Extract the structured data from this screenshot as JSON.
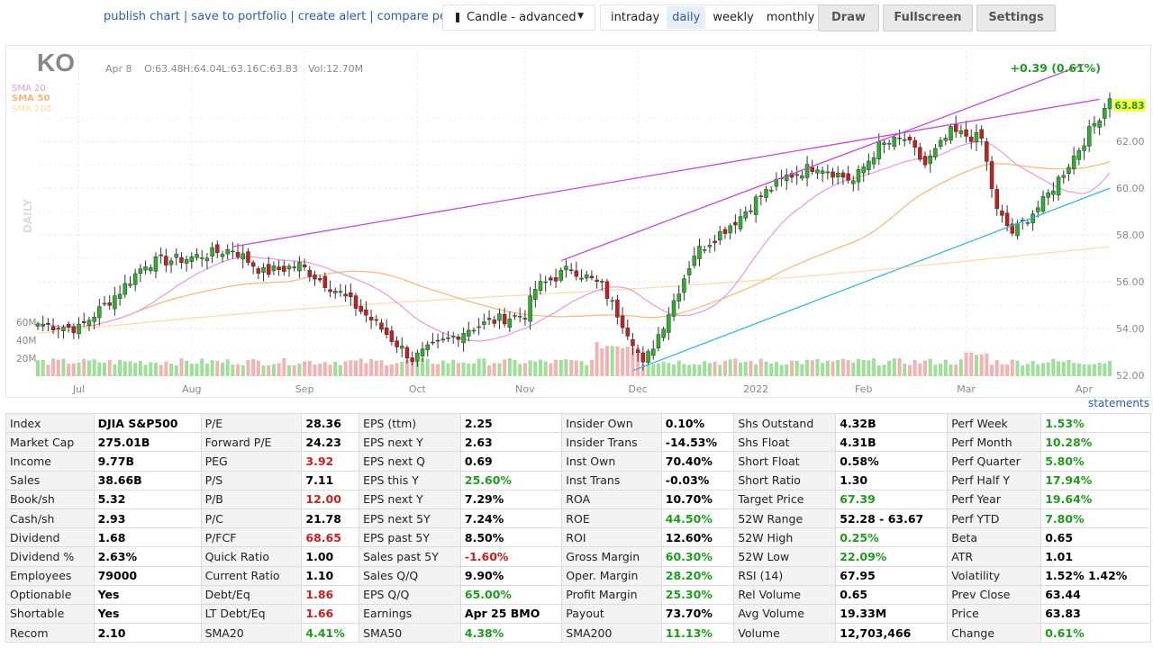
{
  "toolbar": {
    "links": [
      "publish chart",
      "save to portfolio",
      "create alert",
      "compare perf."
    ],
    "chart_type": "Candle - advanced",
    "timeframes": [
      "intraday",
      "daily",
      "weekly",
      "monthly"
    ],
    "active_timeframe": "daily",
    "buttons": [
      "Draw",
      "Fullscreen",
      "Settings"
    ]
  },
  "chart_header": {
    "ticker": "KO",
    "date": "Apr 8",
    "open": "O:63.48",
    "high": "H:64.04",
    "low": "L:63.16",
    "close": "C:63.83",
    "volume": "Vol:12.70M",
    "change": "+0.39 (0.61%)",
    "interval_label": "DAILY",
    "last_price": "63.83"
  },
  "colors": {
    "up": "#2db12d",
    "down": "#c81e1e",
    "vol_up": "#9ee09a",
    "vol_down": "#f4b3b3",
    "sma20": "#e59be1",
    "sma50": "#f5b77a",
    "sma200": "#f8dca8",
    "trendline": "#c04bd6",
    "support": "#3ab4e0",
    "positive": "#1f9b20",
    "negative": "#c82020"
  },
  "chart_data": {
    "type": "candlestick",
    "legend": [
      "SMA 20",
      "SMA 50",
      "SMA 200"
    ],
    "x_tick_labels": [
      "Jul",
      "Aug",
      "Sep",
      "Oct",
      "Nov",
      "Dec",
      "2022",
      "Feb",
      "Mar",
      "Apr"
    ],
    "y_tick_labels": [
      "52.00",
      "54.00",
      "56.00",
      "58.00",
      "60.00",
      "62.00"
    ],
    "ylim": [
      52,
      64.2
    ],
    "volume_tick_labels": [
      "60M",
      "40M",
      "20M"
    ],
    "volume_max": 60,
    "anchors": [
      [
        "Jun 21",
        54.2
      ],
      [
        "Jul 1",
        54.0
      ],
      [
        "Jul 13",
        55.6
      ],
      [
        "Jul 20",
        56.8
      ],
      [
        "Jul 30",
        57.0
      ],
      [
        "Aug 12",
        57.4
      ],
      [
        "Aug 20",
        56.4
      ],
      [
        "Aug 31",
        56.7
      ],
      [
        "Sep 10",
        55.5
      ],
      [
        "Sep 21",
        54.2
      ],
      [
        "Sep 30",
        52.7
      ],
      [
        "Oct 6",
        53.2
      ],
      [
        "Oct 15",
        54.0
      ],
      [
        "Oct 25",
        54.4
      ],
      [
        "Oct 31",
        54.6
      ],
      [
        "Nov 3",
        55.7
      ],
      [
        "Nov 12",
        56.6
      ],
      [
        "Nov 22",
        55.8
      ],
      [
        "Nov 30",
        53.5
      ],
      [
        "Dec 2",
        52.4
      ],
      [
        "Dec 8",
        54.2
      ],
      [
        "Dec 16",
        57.2
      ],
      [
        "Dec 29",
        58.8
      ],
      [
        "Jan 3",
        59.5
      ],
      [
        "Jan 11",
        60.5
      ],
      [
        "Jan 19",
        61.0
      ],
      [
        "Jan 28",
        60.3
      ],
      [
        "Feb 4",
        61.8
      ],
      [
        "Feb 11",
        62.1
      ],
      [
        "Feb 17",
        61.0
      ],
      [
        "Feb 24",
        62.4
      ],
      [
        "Mar 4",
        62.1
      ],
      [
        "Mar 9",
        59.0
      ],
      [
        "Mar 14",
        58.1
      ],
      [
        "Mar 22",
        59.4
      ],
      [
        "Mar 31",
        61.7
      ],
      [
        "Apr 8",
        63.83
      ]
    ],
    "annotations": [
      {
        "type": "trendline",
        "from": [
          "Aug 12",
          57.5
        ],
        "to": [
          "Apr 6",
          63.8
        ]
      },
      {
        "type": "trendline",
        "from": [
          "Nov 10",
          56.9
        ],
        "to": [
          "Apr 1",
          65.3
        ]
      },
      {
        "type": "support",
        "from": [
          "Nov 30",
          52.2
        ],
        "to": [
          "Apr 8",
          60.0
        ]
      }
    ]
  },
  "statements_link": "statements",
  "fundamentals": [
    [
      [
        "Index",
        "DJIA S&P500",
        ""
      ],
      [
        "P/E",
        "28.36",
        ""
      ],
      [
        "EPS (ttm)",
        "2.25",
        ""
      ],
      [
        "Insider Own",
        "0.10%",
        ""
      ],
      [
        "Shs Outstand",
        "4.32B",
        ""
      ],
      [
        "Perf Week",
        "1.53%",
        "pos"
      ]
    ],
    [
      [
        "Market Cap",
        "275.01B",
        ""
      ],
      [
        "Forward P/E",
        "24.23",
        ""
      ],
      [
        "EPS next Y",
        "2.63",
        ""
      ],
      [
        "Insider Trans",
        "-14.53%",
        ""
      ],
      [
        "Shs Float",
        "4.31B",
        ""
      ],
      [
        "Perf Month",
        "10.28%",
        "pos"
      ]
    ],
    [
      [
        "Income",
        "9.77B",
        ""
      ],
      [
        "PEG",
        "3.92",
        "neg"
      ],
      [
        "EPS next Q",
        "0.69",
        ""
      ],
      [
        "Inst Own",
        "70.40%",
        ""
      ],
      [
        "Short Float",
        "0.58%",
        ""
      ],
      [
        "Perf Quarter",
        "5.80%",
        "pos"
      ]
    ],
    [
      [
        "Sales",
        "38.66B",
        ""
      ],
      [
        "P/S",
        "7.11",
        ""
      ],
      [
        "EPS this Y",
        "25.60%",
        "pos"
      ],
      [
        "Inst Trans",
        "-0.03%",
        ""
      ],
      [
        "Short Ratio",
        "1.30",
        ""
      ],
      [
        "Perf Half Y",
        "17.94%",
        "pos"
      ]
    ],
    [
      [
        "Book/sh",
        "5.32",
        ""
      ],
      [
        "P/B",
        "12.00",
        "neg"
      ],
      [
        "EPS next Y",
        "7.29%",
        ""
      ],
      [
        "ROA",
        "10.70%",
        ""
      ],
      [
        "Target Price",
        "67.39",
        "pos"
      ],
      [
        "Perf Year",
        "19.64%",
        "pos"
      ]
    ],
    [
      [
        "Cash/sh",
        "2.93",
        ""
      ],
      [
        "P/C",
        "21.78",
        ""
      ],
      [
        "EPS next 5Y",
        "7.24%",
        ""
      ],
      [
        "ROE",
        "44.50%",
        "pos"
      ],
      [
        "52W Range",
        "52.28 - 63.67",
        ""
      ],
      [
        "Perf YTD",
        "7.80%",
        "pos"
      ]
    ],
    [
      [
        "Dividend",
        "1.68",
        ""
      ],
      [
        "P/FCF",
        "68.65",
        "neg"
      ],
      [
        "EPS past 5Y",
        "8.50%",
        ""
      ],
      [
        "ROI",
        "12.60%",
        ""
      ],
      [
        "52W High",
        "0.25%",
        "pos"
      ],
      [
        "Beta",
        "0.65",
        ""
      ]
    ],
    [
      [
        "Dividend %",
        "2.63%",
        ""
      ],
      [
        "Quick Ratio",
        "1.00",
        ""
      ],
      [
        "Sales past 5Y",
        "-1.60%",
        "neg"
      ],
      [
        "Gross Margin",
        "60.30%",
        "pos"
      ],
      [
        "52W Low",
        "22.09%",
        "pos"
      ],
      [
        "ATR",
        "1.01",
        ""
      ]
    ],
    [
      [
        "Employees",
        "79000",
        ""
      ],
      [
        "Current Ratio",
        "1.10",
        ""
      ],
      [
        "Sales Q/Q",
        "9.90%",
        ""
      ],
      [
        "Oper. Margin",
        "28.20%",
        "pos"
      ],
      [
        "RSI (14)",
        "67.95",
        ""
      ],
      [
        "Volatility",
        "1.52% 1.42%",
        ""
      ]
    ],
    [
      [
        "Optionable",
        "Yes",
        ""
      ],
      [
        "Debt/Eq",
        "1.86",
        "neg"
      ],
      [
        "EPS Q/Q",
        "65.00%",
        "pos"
      ],
      [
        "Profit Margin",
        "25.30%",
        "pos"
      ],
      [
        "Rel Volume",
        "0.65",
        ""
      ],
      [
        "Prev Close",
        "63.44",
        ""
      ]
    ],
    [
      [
        "Shortable",
        "Yes",
        ""
      ],
      [
        "LT Debt/Eq",
        "1.66",
        "neg"
      ],
      [
        "Earnings",
        "Apr 25 BMO",
        ""
      ],
      [
        "Payout",
        "73.70%",
        ""
      ],
      [
        "Avg Volume",
        "19.33M",
        ""
      ],
      [
        "Price",
        "63.83",
        ""
      ]
    ],
    [
      [
        "Recom",
        "2.10",
        ""
      ],
      [
        "SMA20",
        "4.41%",
        "pos"
      ],
      [
        "SMA50",
        "4.38%",
        "pos"
      ],
      [
        "SMA200",
        "11.13%",
        "pos"
      ],
      [
        "Volume",
        "12,703,466",
        ""
      ],
      [
        "Change",
        "0.61%",
        "pos"
      ]
    ]
  ]
}
